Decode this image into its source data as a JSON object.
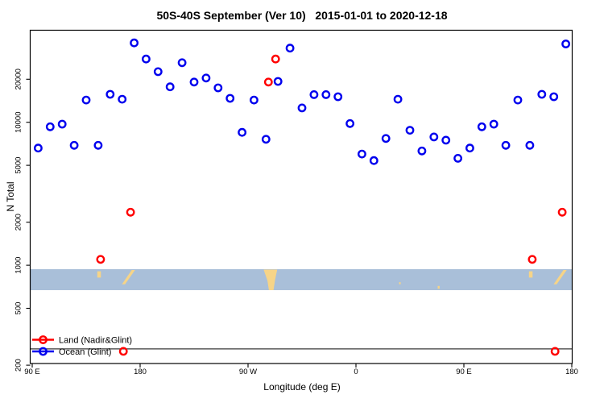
{
  "chart_data": {
    "type": "scatter",
    "title": "50S-40S September (Ver 10)   2015-01-01 to 2020-12-18",
    "xlabel": "Longitude (deg E)",
    "ylabel": "N Total",
    "x_axis": {
      "range_deg_continuous": [
        90,
        540
      ],
      "tick_lons": [
        90,
        180,
        270,
        360,
        450,
        540
      ],
      "tick_labels": [
        "90 E",
        "180",
        "90 W",
        "0",
        "90 E",
        "180"
      ]
    },
    "y_axis": {
      "scale": "log",
      "ticks": [
        200,
        500,
        1000,
        2000,
        5000,
        10000,
        20000
      ],
      "tick_labels": [
        "200",
        "500",
        "1000",
        "2000",
        "5000",
        "10000",
        "20000"
      ],
      "range": [
        200,
        44000
      ]
    },
    "legend_position": "bottom-left",
    "grid": false,
    "hline_value": 260,
    "series": [
      {
        "name": "Land (Nadir&Glint)",
        "color": "#FF0000",
        "marker": "open-circle",
        "points": [
          [
            147,
            1100
          ],
          [
            166,
            250
          ],
          [
            172,
            2350
          ],
          [
            287,
            19100
          ],
          [
            293,
            27700
          ],
          [
            507,
            1100
          ],
          [
            526,
            250
          ],
          [
            532,
            2350
          ]
        ]
      },
      {
        "name": "Ocean (Glint)",
        "color": "#0000EE",
        "marker": "open-circle",
        "points": [
          [
            95,
            6600
          ],
          [
            105,
            9300
          ],
          [
            115,
            9700
          ],
          [
            125,
            6900
          ],
          [
            135,
            14300
          ],
          [
            145,
            6900
          ],
          [
            155,
            15700
          ],
          [
            165,
            14500
          ],
          [
            175,
            35900
          ],
          [
            185,
            27700
          ],
          [
            195,
            22600
          ],
          [
            205,
            17700
          ],
          [
            215,
            26100
          ],
          [
            225,
            19100
          ],
          [
            235,
            20400
          ],
          [
            245,
            17400
          ],
          [
            255,
            14700
          ],
          [
            265,
            8500
          ],
          [
            275,
            14300
          ],
          [
            285,
            7600
          ],
          [
            295,
            19300
          ],
          [
            305,
            33000
          ],
          [
            315,
            12600
          ],
          [
            325,
            15600
          ],
          [
            335,
            15600
          ],
          [
            345,
            15100
          ],
          [
            355,
            9800
          ],
          [
            365,
            6000
          ],
          [
            375,
            5400
          ],
          [
            385,
            7700
          ],
          [
            395,
            14500
          ],
          [
            405,
            8800
          ],
          [
            415,
            6300
          ],
          [
            425,
            7900
          ],
          [
            435,
            7500
          ],
          [
            445,
            5600
          ],
          [
            455,
            6600
          ],
          [
            465,
            9300
          ],
          [
            475,
            9700
          ],
          [
            485,
            6900
          ],
          [
            495,
            14300
          ],
          [
            505,
            6900
          ],
          [
            515,
            15700
          ],
          [
            525,
            15100
          ],
          [
            535,
            35300
          ]
        ]
      }
    ],
    "map_strip": {
      "description": "world map band for 50S-40S latitude zone",
      "ocean_color": "#A9BFD9",
      "land_color": "#F6D488",
      "land_patches": [
        {
          "name": "tasmania",
          "poly": [
            [
              144.3,
              0.1
            ],
            [
              147.3,
              0.1
            ],
            [
              147.3,
              0.4
            ],
            [
              144.3,
              0.4
            ]
          ]
        },
        {
          "name": "new-zealand",
          "poly": [
            [
              164.8,
              0.72
            ],
            [
              167.4,
              0.72
            ],
            [
              175.8,
              0.04
            ],
            [
              173.0,
              0.04
            ]
          ]
        },
        {
          "name": "south-america",
          "poly": [
            [
              283.0,
              0.02
            ],
            [
              294.3,
              0.02
            ],
            [
              292.6,
              0.5
            ],
            [
              291.2,
              1.0
            ],
            [
              287.4,
              1.0
            ],
            [
              286.2,
              0.55
            ]
          ]
        },
        {
          "name": "prince-edward-islands",
          "poly": [
            [
              396.0,
              0.62
            ],
            [
              397.3,
              0.62
            ],
            [
              397.3,
              0.72
            ],
            [
              396.0,
              0.72
            ]
          ]
        },
        {
          "name": "kerguelen-islands",
          "poly": [
            [
              428.2,
              0.8
            ],
            [
              429.8,
              0.8
            ],
            [
              429.8,
              0.93
            ],
            [
              428.2,
              0.93
            ]
          ]
        },
        {
          "name": "tasmania-repeat",
          "poly": [
            [
              504.3,
              0.1
            ],
            [
              507.3,
              0.1
            ],
            [
              507.3,
              0.4
            ],
            [
              504.3,
              0.4
            ]
          ]
        },
        {
          "name": "new-zealand-repeat",
          "poly": [
            [
              524.8,
              0.72
            ],
            [
              527.4,
              0.72
            ],
            [
              535.8,
              0.04
            ],
            [
              533.0,
              0.04
            ]
          ]
        }
      ]
    }
  }
}
